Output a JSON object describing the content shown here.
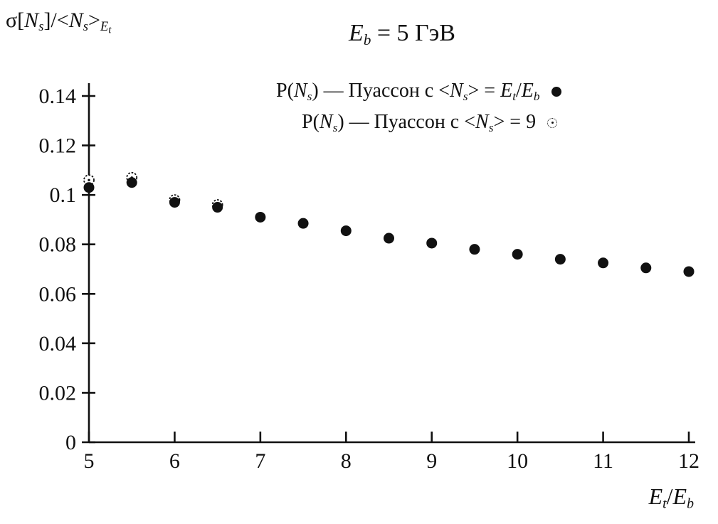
{
  "title_segments": [
    {
      "t": "E",
      "i": 1
    },
    {
      "t": "b",
      "i": 1,
      "sub": 1
    },
    {
      "t": " = 5 ГэВ"
    }
  ],
  "ylabel_segments": [
    {
      "t": "σ["
    },
    {
      "t": "N",
      "i": 1
    },
    {
      "t": "s",
      "i": 1,
      "sub": 1
    },
    {
      "t": "]/<"
    },
    {
      "t": "N",
      "i": 1
    },
    {
      "t": "s",
      "i": 1,
      "sub": 1
    },
    {
      "t": ">"
    },
    {
      "t": "E",
      "i": 1,
      "sub": 1
    },
    {
      "t": "t",
      "i": 1,
      "sub": 2
    }
  ],
  "xlabel_segments": [
    {
      "t": "E",
      "i": 1
    },
    {
      "t": "t",
      "i": 1,
      "sub": 1
    },
    {
      "t": "/"
    },
    {
      "t": "E",
      "i": 1
    },
    {
      "t": "b",
      "i": 1,
      "sub": 1
    }
  ],
  "legend": [
    {
      "marker": "filled-circle",
      "segments": [
        {
          "t": "P("
        },
        {
          "t": "N",
          "i": 1
        },
        {
          "t": "s",
          "i": 1,
          "sub": 1
        },
        {
          "t": ") — Пуассон с <"
        },
        {
          "t": "N",
          "i": 1
        },
        {
          "t": "s",
          "i": 1,
          "sub": 1
        },
        {
          "t": "> = "
        },
        {
          "t": "E",
          "i": 1
        },
        {
          "t": "t",
          "i": 1,
          "sub": 1
        },
        {
          "t": "/"
        },
        {
          "t": "E",
          "i": 1
        },
        {
          "t": "b",
          "i": 1,
          "sub": 1
        }
      ]
    },
    {
      "marker": "open-circle",
      "segments": [
        {
          "t": "P("
        },
        {
          "t": "N",
          "i": 1
        },
        {
          "t": "s",
          "i": 1,
          "sub": 1
        },
        {
          "t": ") — Пуассон с <"
        },
        {
          "t": "N",
          "i": 1
        },
        {
          "t": "s",
          "i": 1,
          "sub": 1
        },
        {
          "t": "> = 9"
        }
      ]
    }
  ],
  "chart_data": {
    "type": "scatter",
    "title": "E_b = 5 ГэВ",
    "xlabel": "E_t/E_b",
    "ylabel": "σ[N_s]/<N_s>_{E_t}",
    "xlim": [
      5,
      12
    ],
    "ylim": [
      0,
      0.14
    ],
    "x_ticks": [
      5,
      6,
      7,
      8,
      9,
      10,
      11,
      12
    ],
    "y_ticks": [
      0,
      0.02,
      0.04,
      0.06,
      0.08,
      0.1,
      0.12,
      0.14
    ],
    "y_tick_labels": [
      "0",
      "0.02",
      "0.04",
      "0.06",
      "0.08",
      "0.1",
      "0.12",
      "0.14"
    ],
    "grid": false,
    "legend_position": "top-inside",
    "series": [
      {
        "name": "P(Ns) — Пуассон с <Ns> = 9",
        "marker": "open-circle",
        "x": [
          5,
          5.5,
          6,
          6.5
        ],
        "y": [
          0.106,
          0.107,
          0.098,
          0.096
        ]
      },
      {
        "name": "P(Ns) — Пуассон с <Ns> = Et/Eb",
        "marker": "filled-circle",
        "x": [
          5,
          5.5,
          6,
          6.5,
          7,
          7.5,
          8,
          8.5,
          9,
          9.5,
          10,
          10.5,
          11,
          11.5,
          12
        ],
        "y": [
          0.103,
          0.105,
          0.097,
          0.095,
          0.091,
          0.0885,
          0.0855,
          0.0825,
          0.0805,
          0.078,
          0.076,
          0.074,
          0.0725,
          0.0705,
          0.069
        ]
      }
    ],
    "colors": {
      "point": "#111111",
      "axis": "#111111",
      "background": "#ffffff"
    }
  }
}
